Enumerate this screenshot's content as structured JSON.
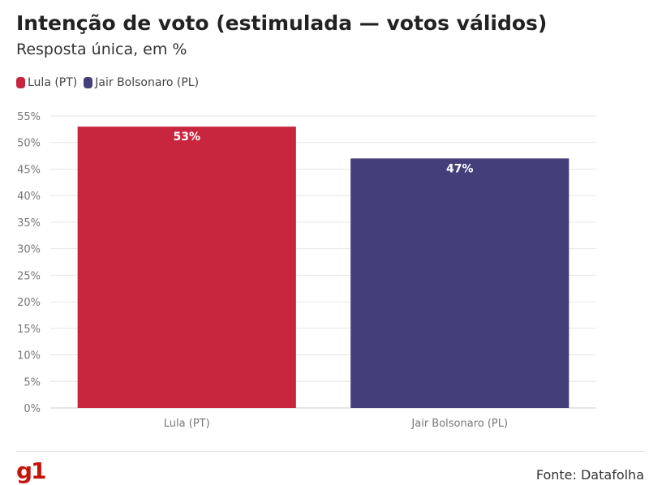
{
  "header": {
    "title": "Intenção de voto (estimulada — votos válidos)",
    "subtitle": "Resposta única, em %"
  },
  "chart_data": {
    "type": "bar",
    "categories": [
      "Lula (PT)",
      "Jair Bolsonaro (PL)"
    ],
    "values": [
      53,
      47
    ],
    "data_labels": [
      "53%",
      "47%"
    ],
    "colors": [
      "#c8263f",
      "#443f7a"
    ],
    "ylim": [
      0,
      55
    ],
    "yticks": [
      0,
      5,
      10,
      15,
      20,
      25,
      30,
      35,
      40,
      45,
      50,
      55
    ],
    "ytick_labels": [
      "0%",
      "5%",
      "10%",
      "15%",
      "20%",
      "25%",
      "30%",
      "35%",
      "40%",
      "45%",
      "50%",
      "55%"
    ],
    "legend": {
      "placement": "top-left",
      "entries": [
        {
          "label": "Lula (PT)",
          "color": "#c8263f"
        },
        {
          "label": "Jair Bolsonaro (PL)",
          "color": "#443f7a"
        }
      ]
    },
    "grid": true
  },
  "footer": {
    "logo": "g1",
    "source": "Fonte: Datafolha"
  }
}
